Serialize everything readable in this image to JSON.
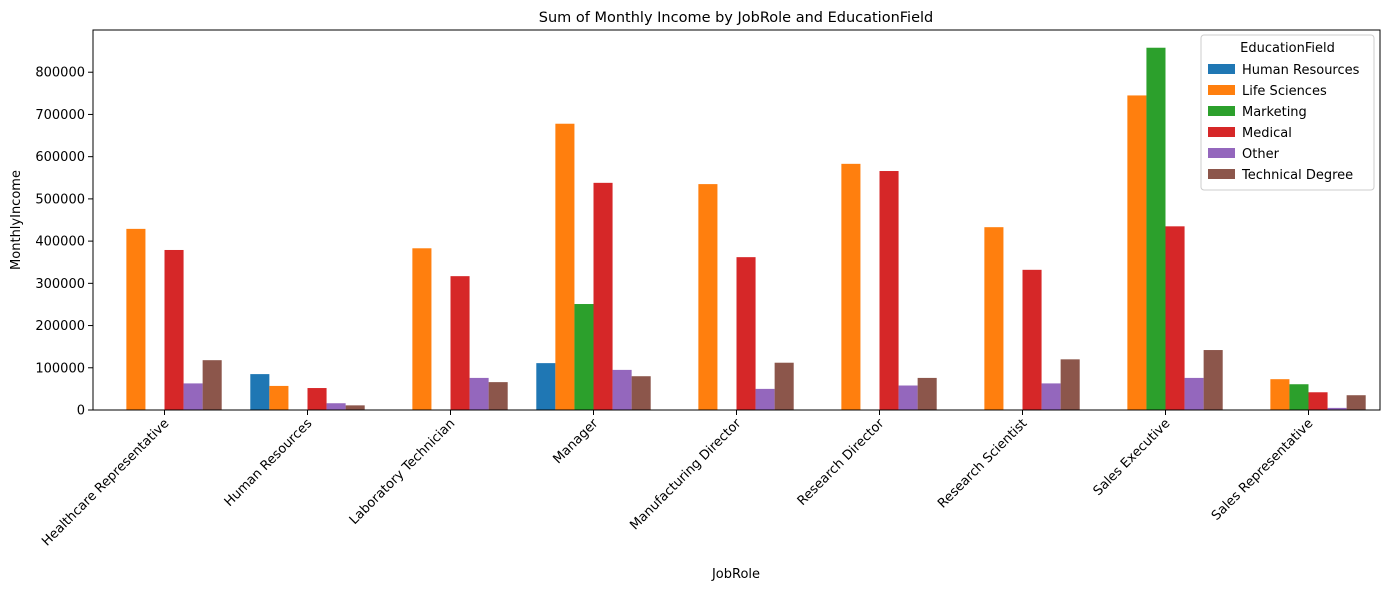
{
  "chart_data": {
    "type": "bar",
    "title": "Sum of Monthly Income by JobRole and EducationField",
    "xlabel": "JobRole",
    "ylabel": "MonthlyIncome",
    "ylim": [
      0,
      900000
    ],
    "yticks": [
      0,
      100000,
      200000,
      300000,
      400000,
      500000,
      600000,
      700000,
      800000
    ],
    "categories": [
      "Healthcare Representative",
      "Human Resources",
      "Laboratory Technician",
      "Manager",
      "Manufacturing Director",
      "Research Director",
      "Research Scientist",
      "Sales Executive",
      "Sales Representative"
    ],
    "legend": {
      "title": "EducationField",
      "placement": "top-right"
    },
    "grid": false,
    "series": [
      {
        "name": "Human Resources",
        "color": "#1f77b4",
        "values": [
          0,
          85000,
          0,
          111000,
          0,
          0,
          0,
          0,
          0
        ]
      },
      {
        "name": "Life Sciences",
        "color": "#ff7f0e",
        "values": [
          429000,
          57000,
          383000,
          678000,
          535000,
          583000,
          433000,
          745000,
          73000
        ]
      },
      {
        "name": "Marketing",
        "color": "#2ca02c",
        "values": [
          0,
          0,
          0,
          251000,
          0,
          0,
          0,
          858000,
          61000
        ]
      },
      {
        "name": "Medical",
        "color": "#d62728",
        "values": [
          379000,
          52000,
          317000,
          538000,
          362000,
          566000,
          332000,
          435000,
          42000
        ]
      },
      {
        "name": "Other",
        "color": "#9467bd",
        "values": [
          63000,
          16000,
          76000,
          95000,
          50000,
          58000,
          63000,
          76000,
          5000
        ]
      },
      {
        "name": "Technical Degree",
        "color": "#8c564b",
        "values": [
          118000,
          11000,
          66000,
          80000,
          112000,
          76000,
          120000,
          142000,
          35000
        ]
      }
    ]
  }
}
